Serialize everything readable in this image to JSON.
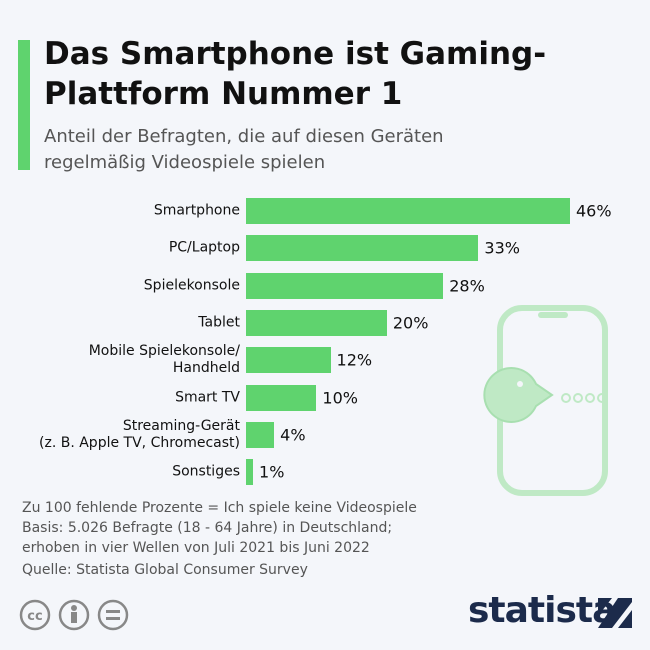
{
  "chart_data": {
    "type": "bar",
    "orientation": "horizontal",
    "title": "Das Smartphone ist Gaming-Plattform Nummer 1",
    "subtitle": "Anteil der Befragten, die auf diesen Geräten regelmäßig Videospiele spielen",
    "categories": [
      "Smartphone",
      "PC/Laptop",
      "Spielekonsole",
      "Tablet",
      "Mobile Spielekonsole/\nHandheld",
      "Smart TV",
      "Streaming-Gerät\n(z. B. Apple TV, Chromecast)",
      "Sonstiges"
    ],
    "values": [
      46,
      33,
      28,
      20,
      12,
      10,
      4,
      1
    ],
    "value_labels": [
      "46%",
      "33%",
      "28%",
      "20%",
      "12%",
      "10%",
      "4%",
      "1%"
    ],
    "color": "#5fd36e",
    "notes": [
      "Zu 100 fehlende Prozente = Ich spiele keine Videospiele",
      "Basis: 5.026 Befragte (18 - 64 Jahre) in Deutschland;",
      "erhoben in vier Wellen von Juli 2021 bis Juni 2022"
    ],
    "source": "Quelle: Statista Global Consumer Survey",
    "brand": "statista"
  }
}
